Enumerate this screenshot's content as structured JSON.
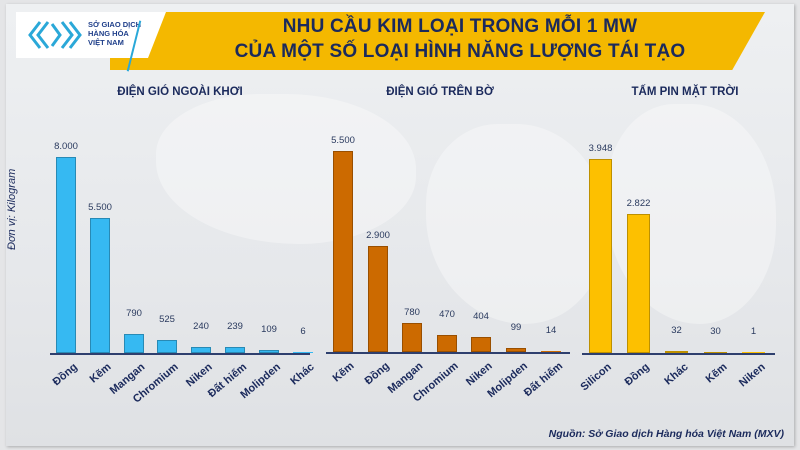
{
  "header": {
    "logo_text": [
      "SỞ GIAO DỊCH",
      "HÀNG HÓA",
      "VIỆT NAM"
    ],
    "title_line1": "NHU CẦU KIM LOẠI TRONG MỖI 1 MW",
    "title_line2": "CỦA MỘT SỐ LOẠI HÌNH NĂNG LƯỢNG TÁI TẠO"
  },
  "ylabel": "Đơn vị: Kilogram",
  "source": "Nguồn: Sở Giao dịch Hàng hóa Việt Nam (MXV)",
  "colors": {
    "offshore": "#36b9f2",
    "onshore": "#cc6a00",
    "solar": "#fdc000",
    "text": "#1b2a5c",
    "banner": "#f4b800"
  },
  "chart_data": [
    {
      "type": "bar",
      "title": "ĐIỆN GIÓ NGOÀI KHƠI",
      "ylabel": "Đơn vị: Kilogram",
      "categories": [
        "Đồng",
        "Kẽm",
        "Mangan",
        "Chromium",
        "Niken",
        "Đất hiếm",
        "Molipden",
        "Khác"
      ],
      "values": [
        8000,
        5500,
        790,
        525,
        240,
        239,
        109,
        6
      ],
      "labels": [
        "8.000",
        "5.500",
        "790",
        "525",
        "240",
        "239",
        "109",
        "6"
      ],
      "color": "#36b9f2",
      "grid": false
    },
    {
      "type": "bar",
      "title": "ĐIỆN GIÓ TRÊN BỜ",
      "ylabel": "Đơn vị: Kilogram",
      "categories": [
        "Kẽm",
        "Đồng",
        "Mangan",
        "Chromium",
        "Niken",
        "Molipden",
        "Đất hiếm"
      ],
      "values": [
        5500,
        2900,
        780,
        470,
        404,
        99,
        14
      ],
      "labels": [
        "5.500",
        "2.900",
        "780",
        "470",
        "404",
        "99",
        "14"
      ],
      "color": "#cc6a00",
      "grid": false
    },
    {
      "type": "bar",
      "title": "TẤM PIN MẶT TRỜI",
      "ylabel": "Đơn vị: Kilogram",
      "categories": [
        "Silicon",
        "Đồng",
        "Khác",
        "Kẽm",
        "Niken"
      ],
      "values": [
        3948,
        2822,
        32,
        30,
        1
      ],
      "labels": [
        "3.948",
        "2.822",
        "32",
        "30",
        "1"
      ],
      "color": "#fdc000",
      "grid": false
    }
  ]
}
